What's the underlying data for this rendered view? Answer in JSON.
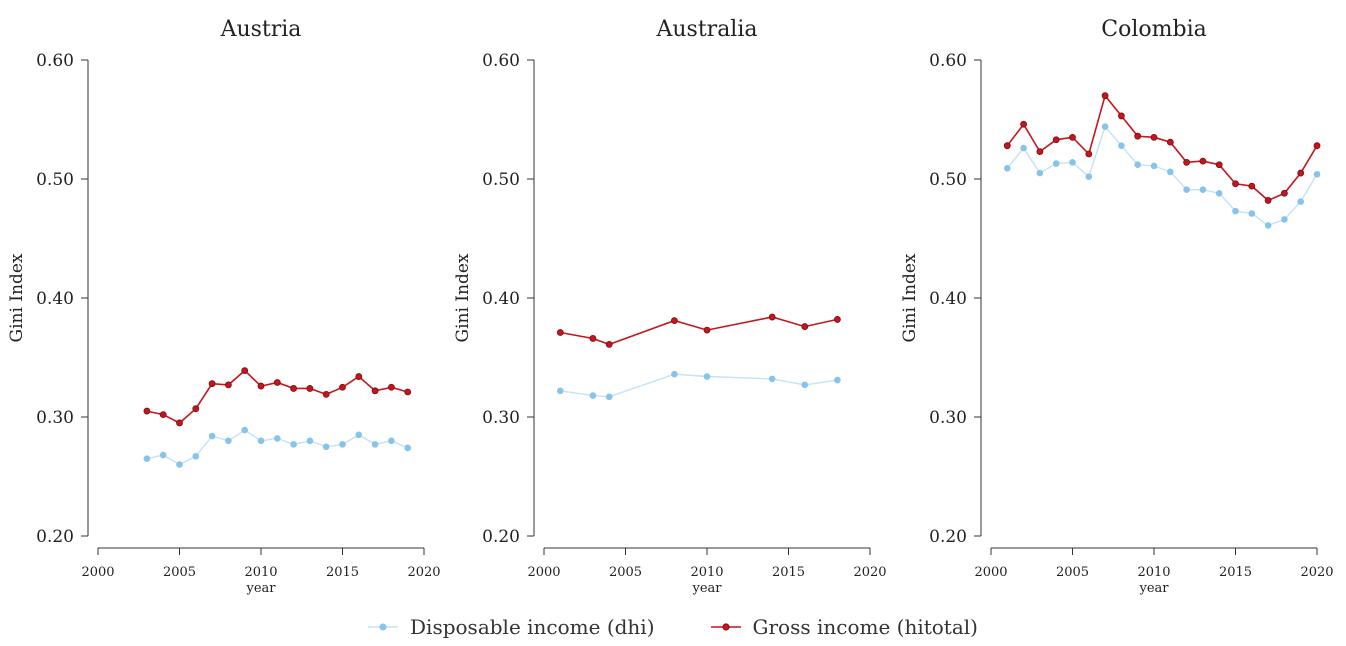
{
  "colors": {
    "dhi": "#87c3ea",
    "dhi_line": "#c4e2f4",
    "hitotal": "#c4161c"
  },
  "legend": [
    {
      "name": "Disposable income (dhi)",
      "color_key": "dhi"
    },
    {
      "name": "Gross income (hitotal)",
      "color_key": "hitotal"
    }
  ],
  "chart_data": [
    {
      "type": "line",
      "title": "Austria",
      "xlabel": "year",
      "ylabel": "Gini Index",
      "xlim": [
        2000,
        2020
      ],
      "ylim": [
        0.2,
        0.6
      ],
      "xticks": [
        "2000",
        "2005",
        "2010",
        "2015",
        "2020"
      ],
      "yticks": [
        "0.20",
        "0.30",
        "0.40",
        "0.50",
        "0.60"
      ],
      "grid": false,
      "legend_position": "bottom",
      "series": [
        {
          "name": "Disposable income (dhi)",
          "x": [
            2003,
            2004,
            2005,
            2006,
            2007,
            2008,
            2009,
            2010,
            2011,
            2012,
            2013,
            2014,
            2015,
            2016,
            2017,
            2018,
            2019
          ],
          "y": [
            0.265,
            0.268,
            0.26,
            0.267,
            0.284,
            0.28,
            0.289,
            0.28,
            0.282,
            0.277,
            0.28,
            0.275,
            0.277,
            0.285,
            0.277,
            0.28,
            0.274
          ]
        },
        {
          "name": "Gross income (hitotal)",
          "x": [
            2003,
            2004,
            2005,
            2006,
            2007,
            2008,
            2009,
            2010,
            2011,
            2012,
            2013,
            2014,
            2015,
            2016,
            2017,
            2018,
            2019
          ],
          "y": [
            0.305,
            0.302,
            0.295,
            0.307,
            0.328,
            0.327,
            0.339,
            0.326,
            0.329,
            0.324,
            0.324,
            0.319,
            0.325,
            0.334,
            0.322,
            0.325,
            0.321
          ]
        }
      ]
    },
    {
      "type": "line",
      "title": "Australia",
      "xlabel": "year",
      "ylabel": "Gini Index",
      "xlim": [
        2000,
        2020
      ],
      "ylim": [
        0.2,
        0.6
      ],
      "xticks": [
        "2000",
        "2005",
        "2010",
        "2015",
        "2020"
      ],
      "yticks": [
        "0.20",
        "0.30",
        "0.40",
        "0.50",
        "0.60"
      ],
      "grid": false,
      "legend_position": "bottom",
      "series": [
        {
          "name": "Disposable income (dhi)",
          "x": [
            2001,
            2003,
            2004,
            2008,
            2010,
            2014,
            2016,
            2018
          ],
          "y": [
            0.322,
            0.318,
            0.317,
            0.336,
            0.334,
            0.332,
            0.327,
            0.331
          ]
        },
        {
          "name": "Gross income (hitotal)",
          "x": [
            2001,
            2003,
            2004,
            2008,
            2010,
            2014,
            2016,
            2018
          ],
          "y": [
            0.371,
            0.366,
            0.361,
            0.381,
            0.373,
            0.384,
            0.376,
            0.382
          ]
        }
      ]
    },
    {
      "type": "line",
      "title": "Colombia",
      "xlabel": "year",
      "ylabel": "Gini Index",
      "xlim": [
        2000,
        2020
      ],
      "ylim": [
        0.2,
        0.6
      ],
      "xticks": [
        "2000",
        "2005",
        "2010",
        "2015",
        "2020"
      ],
      "yticks": [
        "0.20",
        "0.30",
        "0.40",
        "0.50",
        "0.60"
      ],
      "grid": false,
      "legend_position": "bottom",
      "series": [
        {
          "name": "Disposable income (dhi)",
          "x": [
            2001,
            2002,
            2003,
            2004,
            2005,
            2006,
            2007,
            2008,
            2009,
            2010,
            2011,
            2012,
            2013,
            2014,
            2015,
            2016,
            2017,
            2018,
            2019,
            2020
          ],
          "y": [
            0.509,
            0.526,
            0.505,
            0.513,
            0.514,
            0.502,
            0.544,
            0.528,
            0.512,
            0.511,
            0.506,
            0.491,
            0.491,
            0.488,
            0.473,
            0.471,
            0.461,
            0.466,
            0.481,
            0.504
          ]
        },
        {
          "name": "Gross income (hitotal)",
          "x": [
            2001,
            2002,
            2003,
            2004,
            2005,
            2006,
            2007,
            2008,
            2009,
            2010,
            2011,
            2012,
            2013,
            2014,
            2015,
            2016,
            2017,
            2018,
            2019,
            2020
          ],
          "y": [
            0.528,
            0.546,
            0.523,
            0.533,
            0.535,
            0.521,
            0.57,
            0.553,
            0.536,
            0.535,
            0.531,
            0.514,
            0.515,
            0.512,
            0.496,
            0.494,
            0.482,
            0.488,
            0.505,
            0.528
          ]
        }
      ]
    }
  ]
}
